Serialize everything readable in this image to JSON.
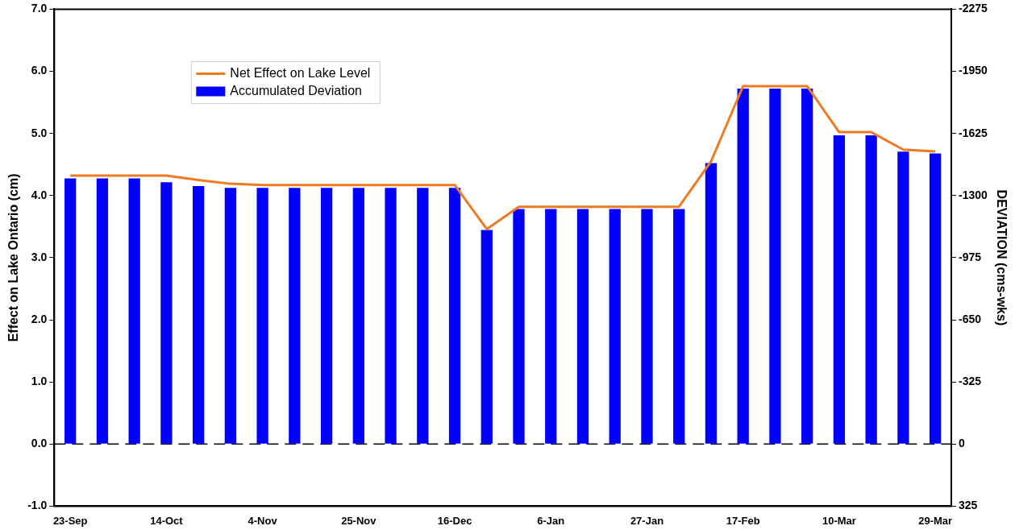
{
  "chart_data": {
    "type": "bar",
    "categories": [
      "23-Sep",
      null,
      null,
      "14-Oct",
      null,
      null,
      "4-Nov",
      null,
      null,
      "25-Nov",
      null,
      null,
      "16-Dec",
      null,
      null,
      "6-Jan",
      null,
      null,
      "27-Jan",
      null,
      null,
      "17-Feb",
      null,
      null,
      "10-Mar",
      null,
      null,
      "29-Mar"
    ],
    "series": [
      {
        "name": "Net Effect on Lake Level",
        "type": "line",
        "color": "#f07a22",
        "values": [
          4.32,
          4.32,
          4.32,
          4.32,
          4.25,
          4.19,
          4.17,
          4.17,
          4.17,
          4.17,
          4.17,
          4.17,
          4.17,
          3.46,
          3.82,
          3.82,
          3.82,
          3.82,
          3.82,
          3.82,
          4.55,
          5.76,
          5.76,
          5.76,
          5.02,
          5.02,
          4.74,
          4.71
        ]
      },
      {
        "name": "Accumulated Deviation",
        "axis": "y2",
        "color": "#0000ff",
        "values": [
          -1390,
          -1390,
          -1390,
          -1370,
          -1350,
          -1340,
          -1340,
          -1340,
          -1340,
          -1340,
          -1340,
          -1340,
          -1340,
          -1120,
          -1230,
          -1230,
          -1230,
          -1230,
          -1230,
          -1230,
          -1470,
          -1860,
          -1860,
          -1860,
          -1615,
          -1615,
          -1530,
          -1520
        ]
      }
    ],
    "ylabel": "Effect on Lake Ontario (cm)",
    "y2label": "DEVIATION (cms-wks)",
    "ylim": [
      -1,
      7
    ],
    "yticks": [
      {
        "value": -1,
        "label": "-1.0"
      },
      {
        "value": 0,
        "label": "0.0"
      },
      {
        "value": 1,
        "label": "1.0"
      },
      {
        "value": 2,
        "label": "2.0"
      },
      {
        "value": 3,
        "label": "3.0"
      },
      {
        "value": 4,
        "label": "4.0"
      },
      {
        "value": 5,
        "label": "5.0"
      },
      {
        "value": 6,
        "label": "6.0"
      },
      {
        "value": 7,
        "label": "7.0"
      }
    ],
    "y2lim": [
      325,
      -2275
    ],
    "y2ticks": [
      325,
      0,
      -325,
      -650,
      -975,
      -1300,
      -1625,
      -1950,
      -2275
    ],
    "ref_lines": [
      {
        "axis": "y",
        "value": 0,
        "color": "#000000",
        "line_style": "dashed"
      }
    ],
    "legend": "top left",
    "grid": false,
    "marker": "none"
  }
}
